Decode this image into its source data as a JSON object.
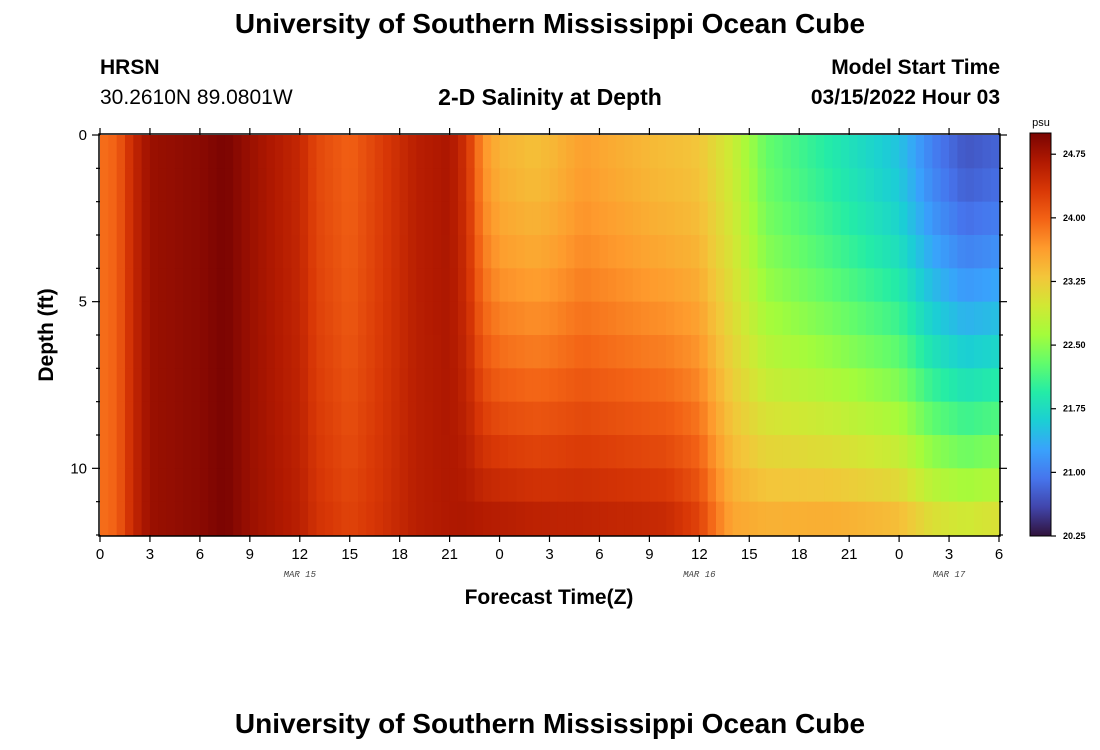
{
  "header": {
    "title": "University of Southern Mississippi Ocean Cube",
    "station_name": "HRSN",
    "station_coords": "30.2610N  89.0801W",
    "chart_title": "2-D Salinity at Depth",
    "model_start_label": "Model Start Time",
    "model_start_value": "03/15/2022 Hour 03"
  },
  "footer": {
    "title": "University of Southern Mississippi Ocean Cube"
  },
  "chart_data": {
    "type": "heatmap",
    "title": "2-D Salinity at Depth",
    "xlabel": "Forecast Time(Z)",
    "ylabel": "Depth (ft)",
    "x_tick_labels": [
      "0",
      "3",
      "6",
      "9",
      "12",
      "15",
      "18",
      "21",
      "0",
      "3",
      "6",
      "9",
      "12",
      "15",
      "18",
      "21",
      "0",
      "3",
      "6"
    ],
    "date_labels": [
      {
        "label": "MAR 15",
        "hour_index": 12
      },
      {
        "label": "MAR 16",
        "hour_index": 36
      },
      {
        "label": "MAR 17",
        "hour_index": 51
      }
    ],
    "x_range_hours": [
      0,
      54
    ],
    "y_tick_labels": [
      "0",
      "5",
      "10"
    ],
    "y_range_ft": [
      0,
      12
    ],
    "depth_levels_ft": [
      0,
      1,
      2,
      3,
      4,
      5,
      6,
      7,
      8,
      9,
      10,
      11,
      12
    ],
    "time_step_hours": 0.5,
    "colorbar": {
      "unit": "psu",
      "min": 20.25,
      "max": 25.0,
      "tick_labels": [
        "24.75",
        "24.00",
        "23.25",
        "22.50",
        "21.75",
        "21.00",
        "20.25"
      ],
      "tick_values": [
        24.75,
        24.0,
        23.25,
        22.5,
        21.75,
        21.0,
        20.25
      ],
      "colormap": [
        "#30123b",
        "#4145ab",
        "#4675ed",
        "#39a2fc",
        "#1bcfd4",
        "#24eca6",
        "#61fc6c",
        "#a4fc3b",
        "#d1e834",
        "#f3c63a",
        "#fe9b2d",
        "#f36315",
        "#d93806",
        "#b11901",
        "#7a0402"
      ]
    },
    "surface_salinity_keypoints_psu": [
      {
        "hour": 0,
        "value": 23.9
      },
      {
        "hour": 1,
        "value": 24.0
      },
      {
        "hour": 2,
        "value": 24.5
      },
      {
        "hour": 3,
        "value": 24.8
      },
      {
        "hour": 6,
        "value": 24.9
      },
      {
        "hour": 7.5,
        "value": 25.0
      },
      {
        "hour": 9,
        "value": 24.8
      },
      {
        "hour": 12,
        "value": 24.5
      },
      {
        "hour": 13,
        "value": 24.2
      },
      {
        "hour": 15,
        "value": 24.0
      },
      {
        "hour": 17,
        "value": 24.3
      },
      {
        "hour": 19,
        "value": 24.6
      },
      {
        "hour": 21,
        "value": 24.7
      },
      {
        "hour": 22,
        "value": 24.4
      },
      {
        "hour": 23,
        "value": 23.7
      },
      {
        "hour": 24,
        "value": 23.45
      },
      {
        "hour": 26,
        "value": 23.35
      },
      {
        "hour": 27,
        "value": 23.4
      },
      {
        "hour": 29,
        "value": 23.6
      },
      {
        "hour": 31,
        "value": 23.5
      },
      {
        "hour": 33,
        "value": 23.4
      },
      {
        "hour": 36,
        "value": 23.3
      },
      {
        "hour": 38,
        "value": 22.9
      },
      {
        "hour": 40,
        "value": 22.3
      },
      {
        "hour": 44,
        "value": 21.9
      },
      {
        "hour": 48,
        "value": 21.5
      },
      {
        "hour": 50,
        "value": 21.0
      },
      {
        "hour": 52,
        "value": 20.7
      },
      {
        "hour": 54,
        "value": 20.8
      }
    ],
    "bottom_salinity_keypoints_psu": [
      {
        "hour": 0,
        "value": 23.9
      },
      {
        "hour": 1,
        "value": 24.0
      },
      {
        "hour": 2,
        "value": 24.5
      },
      {
        "hour": 3,
        "value": 24.8
      },
      {
        "hour": 6,
        "value": 24.9
      },
      {
        "hour": 7.5,
        "value": 25.0
      },
      {
        "hour": 9,
        "value": 24.8
      },
      {
        "hour": 12,
        "value": 24.6
      },
      {
        "hour": 13,
        "value": 24.4
      },
      {
        "hour": 15,
        "value": 24.25
      },
      {
        "hour": 17,
        "value": 24.4
      },
      {
        "hour": 19,
        "value": 24.6
      },
      {
        "hour": 22,
        "value": 24.7
      },
      {
        "hour": 24,
        "value": 24.7
      },
      {
        "hour": 26,
        "value": 24.65
      },
      {
        "hour": 30,
        "value": 24.6
      },
      {
        "hour": 34,
        "value": 24.55
      },
      {
        "hour": 36,
        "value": 24.3
      },
      {
        "hour": 37,
        "value": 23.9
      },
      {
        "hour": 38,
        "value": 23.6
      },
      {
        "hour": 40,
        "value": 23.55
      },
      {
        "hour": 44,
        "value": 23.6
      },
      {
        "hour": 48,
        "value": 23.5
      },
      {
        "hour": 50,
        "value": 23.2
      },
      {
        "hour": 52,
        "value": 23.1
      },
      {
        "hour": 54,
        "value": 23.2
      }
    ],
    "depth_blend_exponent": 1.6
  }
}
